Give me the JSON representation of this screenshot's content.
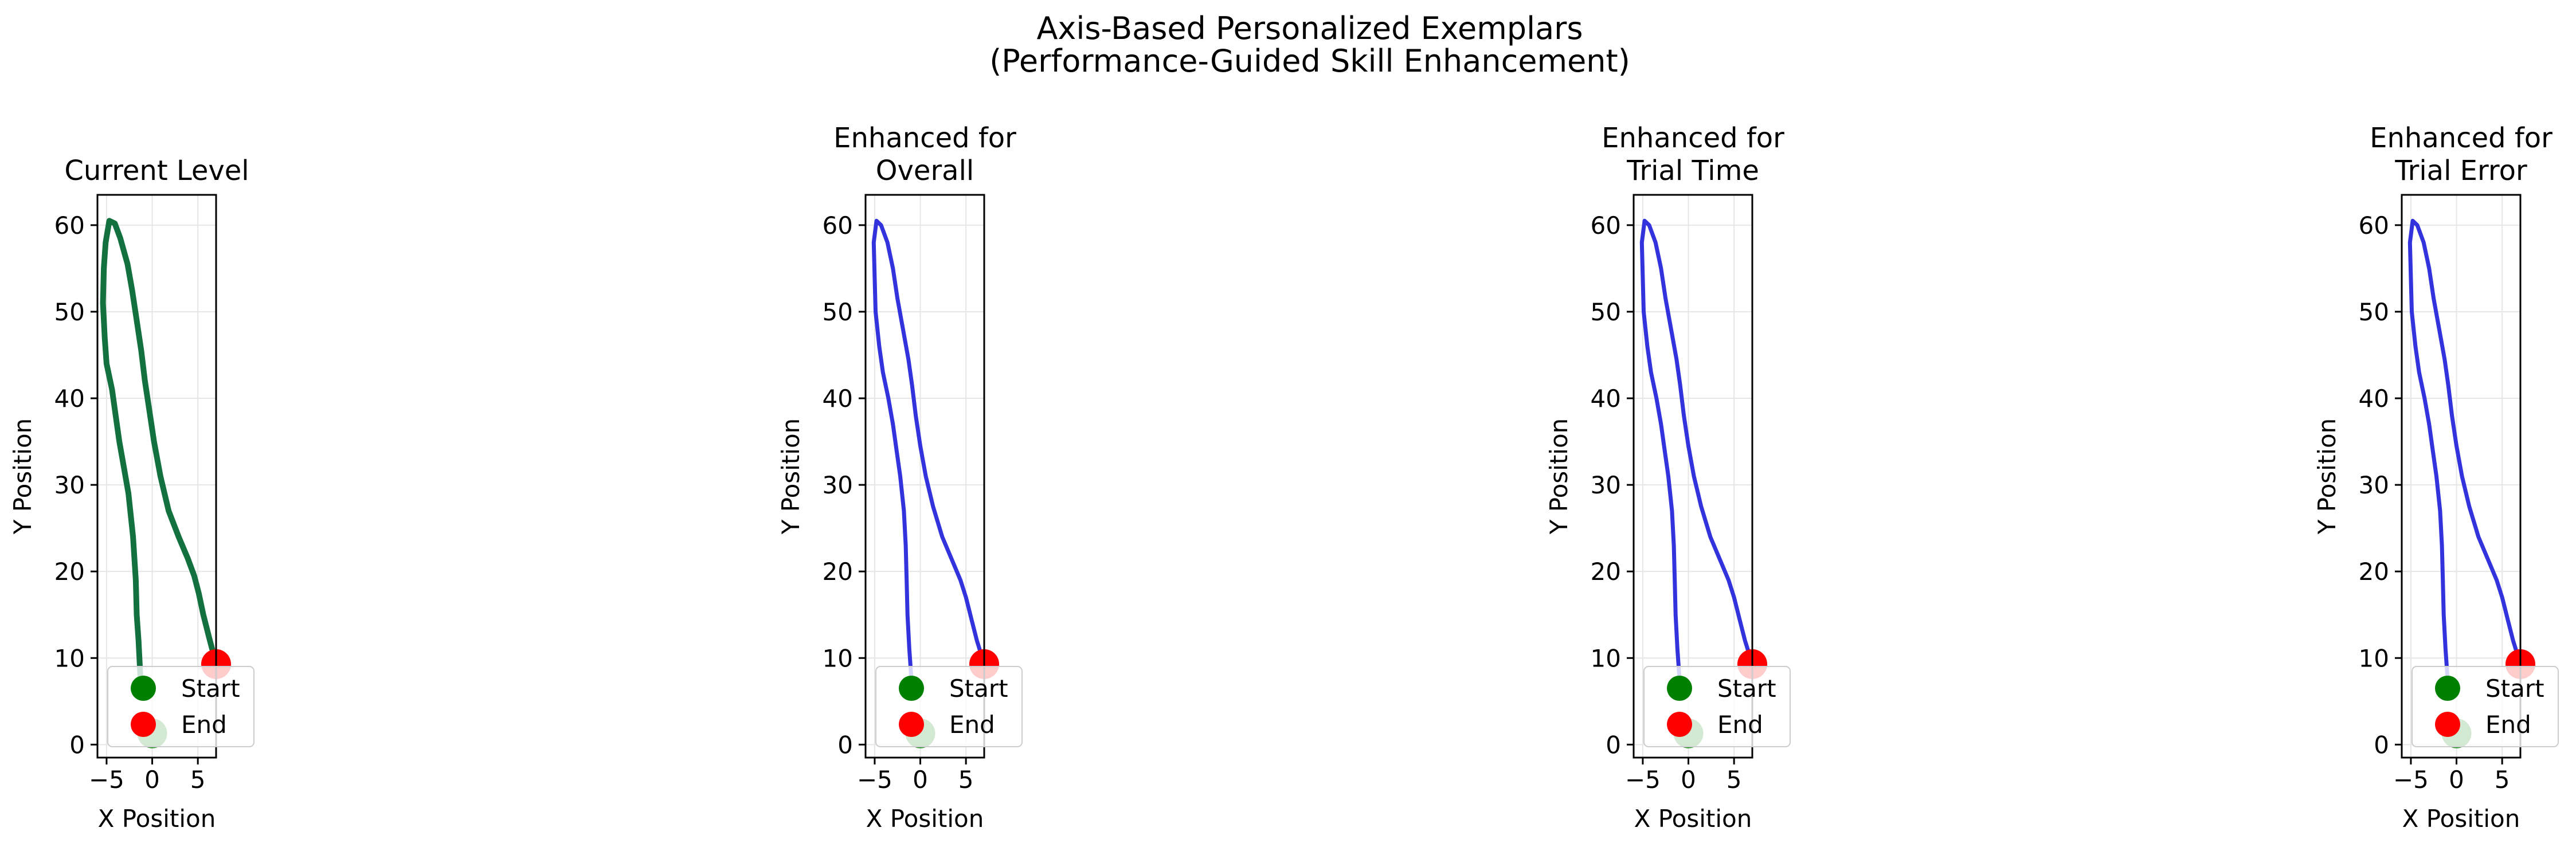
{
  "figure": {
    "title_lines": [
      "Axis-Based Personalized Exemplars",
      "(Performance-Guided Skill Enhancement)"
    ]
  },
  "colors": {
    "current": "#13703f",
    "enhanced": "#3333dd",
    "start_marker": "#008000",
    "end_marker": "#ff0000",
    "grid": "#e6e6e6"
  },
  "chart_data": [
    {
      "type": "line",
      "title_lines": [
        "Current Level"
      ],
      "xlabel": "X Position",
      "ylabel": "Y Position",
      "xlim": [
        -6.0,
        7.0
      ],
      "ylim": [
        -1.5,
        63.5
      ],
      "xticks": [
        -5,
        0,
        5
      ],
      "yticks": [
        0,
        10,
        20,
        30,
        40,
        50,
        60
      ],
      "grid": true,
      "legend": {
        "placement": "lower-left",
        "entries": [
          "Start",
          "End"
        ]
      },
      "series": [
        {
          "style": "current",
          "x": [
            -1.3,
            -1.5,
            -1.7,
            -1.8,
            -2.1,
            -2.6,
            -3.1,
            -3.6,
            -4.0,
            -4.4,
            -5.0,
            -5.2,
            -5.4,
            -5.3,
            -5.1,
            -4.7,
            -4.1,
            -3.5,
            -2.7,
            -2.2,
            -1.7,
            -1.2,
            -0.8,
            -0.3,
            0.2,
            0.9,
            1.8,
            2.9,
            3.9,
            4.6,
            5.1,
            5.6,
            6.2,
            7.0
          ],
          "y": [
            8.0,
            12.0,
            15.0,
            19.0,
            24.0,
            29.0,
            32.0,
            35.0,
            38.0,
            41.0,
            44.0,
            47.0,
            51.0,
            55.0,
            58.0,
            60.5,
            60.2,
            58.5,
            55.5,
            52.5,
            49.0,
            45.5,
            42.0,
            38.5,
            35.0,
            31.0,
            27.0,
            24.0,
            21.5,
            19.5,
            17.5,
            15.0,
            12.5,
            9.3
          ]
        }
      ],
      "start": {
        "x": 0.0,
        "y": 1.3
      },
      "end": {
        "x": 7.0,
        "y": 9.3
      }
    },
    {
      "type": "line",
      "title_lines": [
        "Enhanced for",
        "Overall"
      ],
      "xlabel": "X Position",
      "ylabel": "Y Position",
      "xlim": [
        -6.0,
        7.0
      ],
      "ylim": [
        -1.5,
        63.5
      ],
      "xticks": [
        -5,
        0,
        5
      ],
      "yticks": [
        0,
        10,
        20,
        30,
        40,
        50,
        60
      ],
      "grid": true,
      "legend": {
        "placement": "lower-left",
        "entries": [
          "Start",
          "End"
        ]
      },
      "series": [
        {
          "style": "enhanced",
          "x": [
            -1.0,
            -1.2,
            -1.4,
            -1.5,
            -1.6,
            -1.8,
            -2.2,
            -2.6,
            -3.0,
            -3.5,
            -4.1,
            -4.5,
            -4.9,
            -5.0,
            -5.1,
            -4.8,
            -4.3,
            -3.6,
            -3.0,
            -2.5,
            -1.9,
            -1.3,
            -0.9,
            -0.5,
            0.0,
            0.6,
            1.4,
            2.4,
            3.6,
            4.4,
            5.0,
            5.6,
            6.2,
            7.0
          ],
          "y": [
            8.0,
            11.0,
            15.0,
            19.0,
            23.0,
            27.0,
            31.0,
            34.0,
            37.0,
            40.0,
            43.0,
            46.0,
            50.0,
            54.0,
            58.0,
            60.5,
            60.0,
            58.0,
            55.0,
            51.5,
            48.0,
            44.5,
            41.5,
            38.0,
            34.5,
            31.0,
            27.5,
            24.0,
            21.0,
            19.0,
            17.0,
            14.5,
            12.0,
            9.3
          ]
        }
      ],
      "start": {
        "x": 0.0,
        "y": 1.3
      },
      "end": {
        "x": 7.0,
        "y": 9.3
      }
    },
    {
      "type": "line",
      "title_lines": [
        "Enhanced for",
        "Trial Time"
      ],
      "xlabel": "X Position",
      "ylabel": "Y Position",
      "xlim": [
        -6.0,
        7.0
      ],
      "ylim": [
        -1.5,
        63.5
      ],
      "xticks": [
        -5,
        0,
        5
      ],
      "yticks": [
        0,
        10,
        20,
        30,
        40,
        50,
        60
      ],
      "grid": true,
      "legend": {
        "placement": "lower-left",
        "entries": [
          "Start",
          "End"
        ]
      },
      "series": [
        {
          "style": "enhanced",
          "x": [
            -1.0,
            -1.2,
            -1.4,
            -1.5,
            -1.6,
            -1.8,
            -2.2,
            -2.6,
            -3.0,
            -3.5,
            -4.1,
            -4.5,
            -4.9,
            -5.0,
            -5.1,
            -4.8,
            -4.3,
            -3.6,
            -3.0,
            -2.5,
            -1.9,
            -1.3,
            -0.9,
            -0.5,
            0.0,
            0.6,
            1.4,
            2.4,
            3.6,
            4.4,
            5.0,
            5.6,
            6.2,
            7.0
          ],
          "y": [
            8.0,
            11.0,
            15.0,
            19.0,
            23.0,
            27.0,
            31.0,
            34.0,
            37.0,
            40.0,
            43.0,
            46.0,
            50.0,
            54.0,
            58.0,
            60.5,
            60.0,
            58.0,
            55.0,
            51.5,
            48.0,
            44.5,
            41.5,
            38.0,
            34.5,
            31.0,
            27.5,
            24.0,
            21.0,
            19.0,
            17.0,
            14.5,
            12.0,
            9.3
          ]
        }
      ],
      "start": {
        "x": 0.0,
        "y": 1.3
      },
      "end": {
        "x": 7.0,
        "y": 9.3
      }
    },
    {
      "type": "line",
      "title_lines": [
        "Enhanced for",
        "Trial Error"
      ],
      "xlabel": "X Position",
      "ylabel": "Y Position",
      "xlim": [
        -6.0,
        7.0
      ],
      "ylim": [
        -1.5,
        63.5
      ],
      "xticks": [
        -5,
        0,
        5
      ],
      "yticks": [
        0,
        10,
        20,
        30,
        40,
        50,
        60
      ],
      "grid": true,
      "legend": {
        "placement": "lower-left",
        "entries": [
          "Start",
          "End"
        ]
      },
      "series": [
        {
          "style": "enhanced",
          "x": [
            -1.0,
            -1.2,
            -1.4,
            -1.5,
            -1.6,
            -1.8,
            -2.2,
            -2.6,
            -3.0,
            -3.5,
            -4.1,
            -4.5,
            -4.9,
            -5.0,
            -5.1,
            -4.8,
            -4.3,
            -3.6,
            -3.0,
            -2.5,
            -1.9,
            -1.3,
            -0.9,
            -0.5,
            0.0,
            0.6,
            1.4,
            2.4,
            3.6,
            4.4,
            5.0,
            5.6,
            6.2,
            7.0
          ],
          "y": [
            8.0,
            11.0,
            15.0,
            19.0,
            23.0,
            27.0,
            31.0,
            34.0,
            37.0,
            40.0,
            43.0,
            46.0,
            50.0,
            54.0,
            58.0,
            60.5,
            60.0,
            58.0,
            55.0,
            51.5,
            48.0,
            44.5,
            41.5,
            38.0,
            34.5,
            31.0,
            27.5,
            24.0,
            21.0,
            19.0,
            17.0,
            14.5,
            12.0,
            9.3
          ]
        }
      ],
      "start": {
        "x": 0.0,
        "y": 1.3
      },
      "end": {
        "x": 7.0,
        "y": 9.3
      }
    }
  ]
}
